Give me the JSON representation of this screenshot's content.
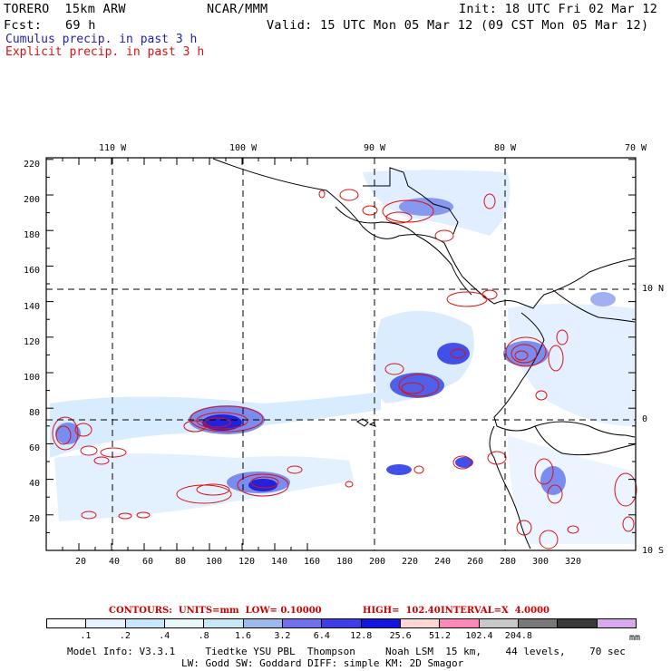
{
  "header": {
    "model": "TORERO  15km ARW",
    "org": "NCAR/MMM",
    "init": "Init: 18 UTC Fri 02 Mar 12",
    "fcst_label": "Fcst:",
    "fcst_value": "69 h",
    "valid": "Valid: 15 UTC Mon 05 Mar 12 (09 CST Mon 05 Mar 12)",
    "line_cumulus": "Cumulus precip. in past 3 h",
    "line_explicit": "Explicit precip. in past 3 h"
  },
  "map": {
    "top_lon_labels": [
      "110 W",
      "100 W",
      "90 W",
      "80 W",
      "70 W"
    ],
    "right_lat_labels": [
      "10 N",
      "0",
      "10 S"
    ],
    "y_ticks": [
      "220",
      "200",
      "180",
      "160",
      "140",
      "120",
      "100",
      "80",
      "60",
      "40",
      "20"
    ],
    "x_ticks": [
      "20",
      "40",
      "60",
      "80",
      "100",
      "120",
      "140",
      "160",
      "180",
      "200",
      "220",
      "240",
      "260",
      "280",
      "300",
      "320"
    ]
  },
  "contours": {
    "text_units": "CONTOURS:  UNITS=mm  LOW= 0.10000",
    "text_high": "HIGH=  102.40",
    "text_interval": "INTERVAL=X  4.0000"
  },
  "colorbar": {
    "labels": [
      ".1",
      ".2",
      ".4",
      ".8",
      "1.6",
      "3.2",
      "6.4",
      "12.8",
      "25.6",
      "51.2",
      "102.4",
      "204.8"
    ],
    "unit": "mm",
    "colors": [
      "#ffffff",
      "#e6f2ff",
      "#c8e6ff",
      "#e8f8f8",
      "#c8e8f5",
      "#a0b8f0",
      "#7070ec",
      "#3c3ce8",
      "#1414e0",
      "#ffd6d6",
      "#ff88bb",
      "#c8c8c8",
      "#787878",
      "#383838",
      "#d8a8f0"
    ]
  },
  "footer": {
    "line1": "Model Info: V3.3.1     Tiedtke YSU PBL  Thompson     Noah LSM  15 km,    44 levels,    70 sec",
    "line2": "LW: Godd SW: Goddard DIFF: simple KM: 2D Smagor"
  }
}
